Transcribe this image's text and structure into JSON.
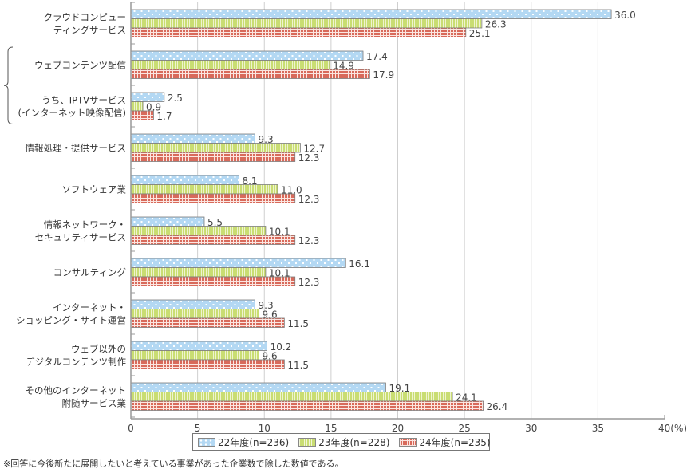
{
  "chart_data": {
    "type": "bar",
    "orientation": "horizontal",
    "categories": [
      [
        "クラウドコンピュー",
        "ティングサービス"
      ],
      [
        "ウェブコンテンツ配信"
      ],
      [
        "うち、IPTVサービス",
        "(インターネット映像配信)"
      ],
      [
        "情報処理・提供サービス"
      ],
      [
        "ソフトウェア業"
      ],
      [
        "情報ネットワーク・",
        "セキュリティサービス"
      ],
      [
        "コンサルティング"
      ],
      [
        "インターネット・",
        "ショッピング・サイト運営"
      ],
      [
        "ウェブ以外の",
        "デジタルコンテンツ制作"
      ],
      [
        "その他のインターネット",
        "附随サービス業"
      ]
    ],
    "series": [
      {
        "name": "22年度(n=236)",
        "color": "#b3d8f3",
        "pattern": "dots",
        "values": [
          36.0,
          17.4,
          2.5,
          9.3,
          8.1,
          5.5,
          16.1,
          9.3,
          10.2,
          19.1
        ]
      },
      {
        "name": "23年度(n=228)",
        "color": "#c9dd72",
        "pattern": "vertical-stripes",
        "values": [
          26.3,
          14.9,
          0.9,
          12.7,
          11.0,
          10.1,
          10.1,
          9.6,
          9.6,
          24.1
        ]
      },
      {
        "name": "24年度(n=235)",
        "color": "#d86a5b",
        "pattern": "grid",
        "values": [
          25.1,
          17.9,
          1.7,
          12.3,
          12.3,
          12.3,
          12.3,
          11.5,
          11.5,
          26.4
        ]
      }
    ],
    "xlim": [
      0,
      40
    ],
    "xticks": [
      "0",
      "5",
      "10",
      "15",
      "20",
      "25",
      "30",
      "35",
      "40(%)"
    ],
    "xtick_values": [
      0,
      5,
      10,
      15,
      20,
      25,
      30,
      35,
      40
    ],
    "grid": true,
    "bracket_groups": [
      [
        1,
        2
      ]
    ],
    "legend_position": "bottom-center",
    "title": "",
    "xlabel": "",
    "ylabel": ""
  },
  "footnote": "※回答に今後新たに展開したいと考えている事業があった企業数で除した数値である。"
}
